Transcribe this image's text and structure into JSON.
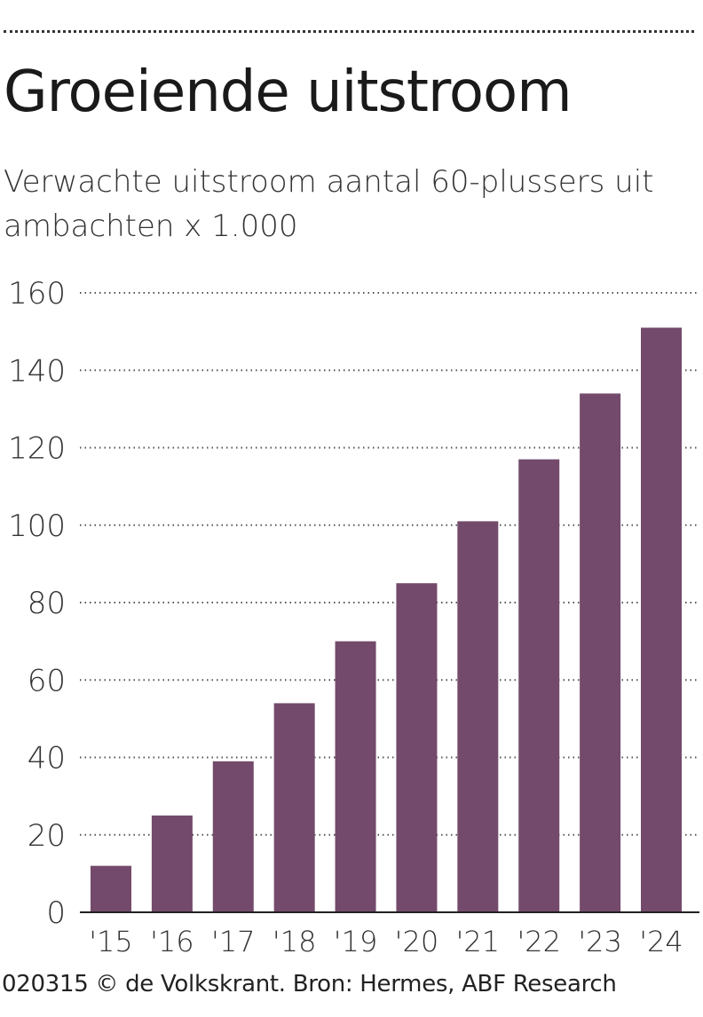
{
  "header": {
    "title": "Groeiende uitstroom",
    "subtitle": "Verwachte uitstroom aantal 60-plussers uit ambachten x 1.000"
  },
  "chart_data": {
    "type": "bar",
    "categories": [
      "'15",
      "'16",
      "'17",
      "'18",
      "'19",
      "'20",
      "'21",
      "'22",
      "'23",
      "'24"
    ],
    "values": [
      12,
      25,
      39,
      54,
      70,
      85,
      101,
      117,
      134,
      151
    ],
    "yticks": [
      "0",
      "20",
      "40",
      "60",
      "80",
      "100",
      "120",
      "140",
      "160"
    ],
    "ylim": [
      0,
      160
    ],
    "grid": true,
    "bar_color": "#734a6b"
  },
  "footer": {
    "source": "020315 © de Volkskrant. Bron: Hermes, ABF Research"
  }
}
